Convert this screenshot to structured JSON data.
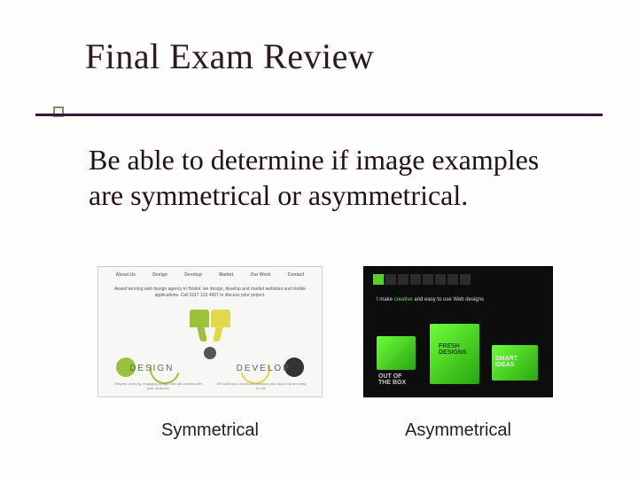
{
  "slide": {
    "title": "Final Exam Review",
    "body": "Be able to determine if image examples are symmetrical or asymmetrical.",
    "rule_color": "#35173a",
    "tick_border": "#8c8a60",
    "background": "#fdfdfb",
    "title_fontsize": 40,
    "body_fontsize": 32
  },
  "figures": {
    "symmetrical": {
      "caption": "Symmetrical",
      "nav_items": [
        "About Us",
        "Design",
        "Develop",
        "Market",
        "Our Work",
        "Contact"
      ],
      "tagline": "Award winning web design agency in Bristol, we design, develop and market websites and mobile applications. Call 0117 123 4567 to discuss your project.",
      "label_left": "DESIGN",
      "label_right": "DEVELOP",
      "color_left": "#9ac23c",
      "color_right": "#e0d94b",
      "dot_right_color": "#333333",
      "background": "#f7f7f5"
    },
    "asymmetrical": {
      "caption": "Asymmetrical",
      "tagline_pre": "I make ",
      "tagline_em": "creative",
      "tagline_post": " and easy to use Web designs",
      "block1_text": "OUT OF THE BOX",
      "block2_text": "FRESH DESIGNS",
      "block3_text": "SMART IDEAS",
      "accent": "#57d12a",
      "background": "#0d0d0d"
    }
  }
}
